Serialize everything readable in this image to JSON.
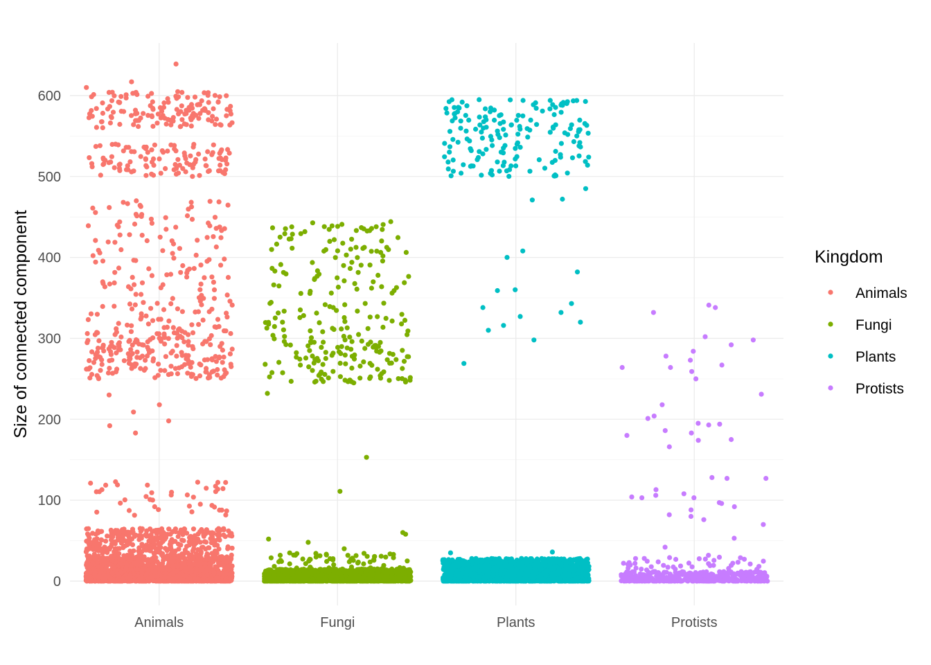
{
  "chart_data": {
    "type": "scatter",
    "jitter": true,
    "title": "",
    "xlabel": "",
    "ylabel": "Size of connected component",
    "categories": [
      "Animals",
      "Fungi",
      "Plants",
      "Protists"
    ],
    "ylim": [
      -30,
      665
    ],
    "yticks": [
      0,
      100,
      200,
      300,
      400,
      500,
      600
    ],
    "grid": true,
    "legend": {
      "title": "Kingdom",
      "position": "right",
      "entries": [
        "Animals",
        "Fungi",
        "Plants",
        "Protists"
      ]
    },
    "colors": {
      "Animals": "#F8766D",
      "Fungi": "#7CAE00",
      "Plants": "#00BFC4",
      "Protists": "#C77CFF"
    },
    "series": [
      {
        "name": "Animals",
        "clusters": [
          {
            "lo": 0,
            "hi": 30,
            "n": 1500
          },
          {
            "lo": 30,
            "hi": 65,
            "n": 350
          },
          {
            "lo": 80,
            "hi": 125,
            "n": 40
          },
          {
            "lo": 250,
            "hi": 310,
            "n": 200
          },
          {
            "lo": 310,
            "hi": 470,
            "n": 160
          },
          {
            "lo": 500,
            "hi": 540,
            "n": 110
          },
          {
            "lo": 560,
            "hi": 605,
            "n": 140
          }
        ],
        "outliers": [
          192,
          183,
          209,
          218,
          230,
          198,
          617,
          639,
          610
        ]
      },
      {
        "name": "Fungi",
        "clusters": [
          {
            "lo": 0,
            "hi": 15,
            "n": 1500
          },
          {
            "lo": 15,
            "hi": 35,
            "n": 60
          },
          {
            "lo": 245,
            "hi": 300,
            "n": 110
          },
          {
            "lo": 300,
            "hi": 345,
            "n": 50
          },
          {
            "lo": 355,
            "hi": 445,
            "n": 90
          }
        ],
        "outliers": [
          232,
          153,
          111,
          60,
          58,
          52,
          48,
          40
        ]
      },
      {
        "name": "Plants",
        "clusters": [
          {
            "lo": 0,
            "hi": 28,
            "n": 1700
          },
          {
            "lo": 500,
            "hi": 595,
            "n": 170
          }
        ],
        "outliers": [
          485,
          472,
          471,
          408,
          400,
          382,
          360,
          359,
          343,
          338,
          332,
          327,
          320,
          316,
          310,
          298,
          269,
          36,
          35
        ]
      },
      {
        "name": "Protists",
        "clusters": [
          {
            "lo": 0,
            "hi": 12,
            "n": 500
          },
          {
            "lo": 12,
            "hi": 30,
            "n": 40
          }
        ],
        "outliers": [
          341,
          338,
          332,
          302,
          298,
          292,
          284,
          278,
          273,
          267,
          264,
          264,
          259,
          250,
          231,
          218,
          204,
          201,
          195,
          194,
          193,
          186,
          183,
          180,
          175,
          174,
          166,
          128,
          127,
          127,
          113,
          108,
          106,
          104,
          103,
          103,
          97,
          96,
          92,
          88,
          82,
          80,
          76,
          70,
          53,
          42,
          32
        ]
      }
    ]
  }
}
